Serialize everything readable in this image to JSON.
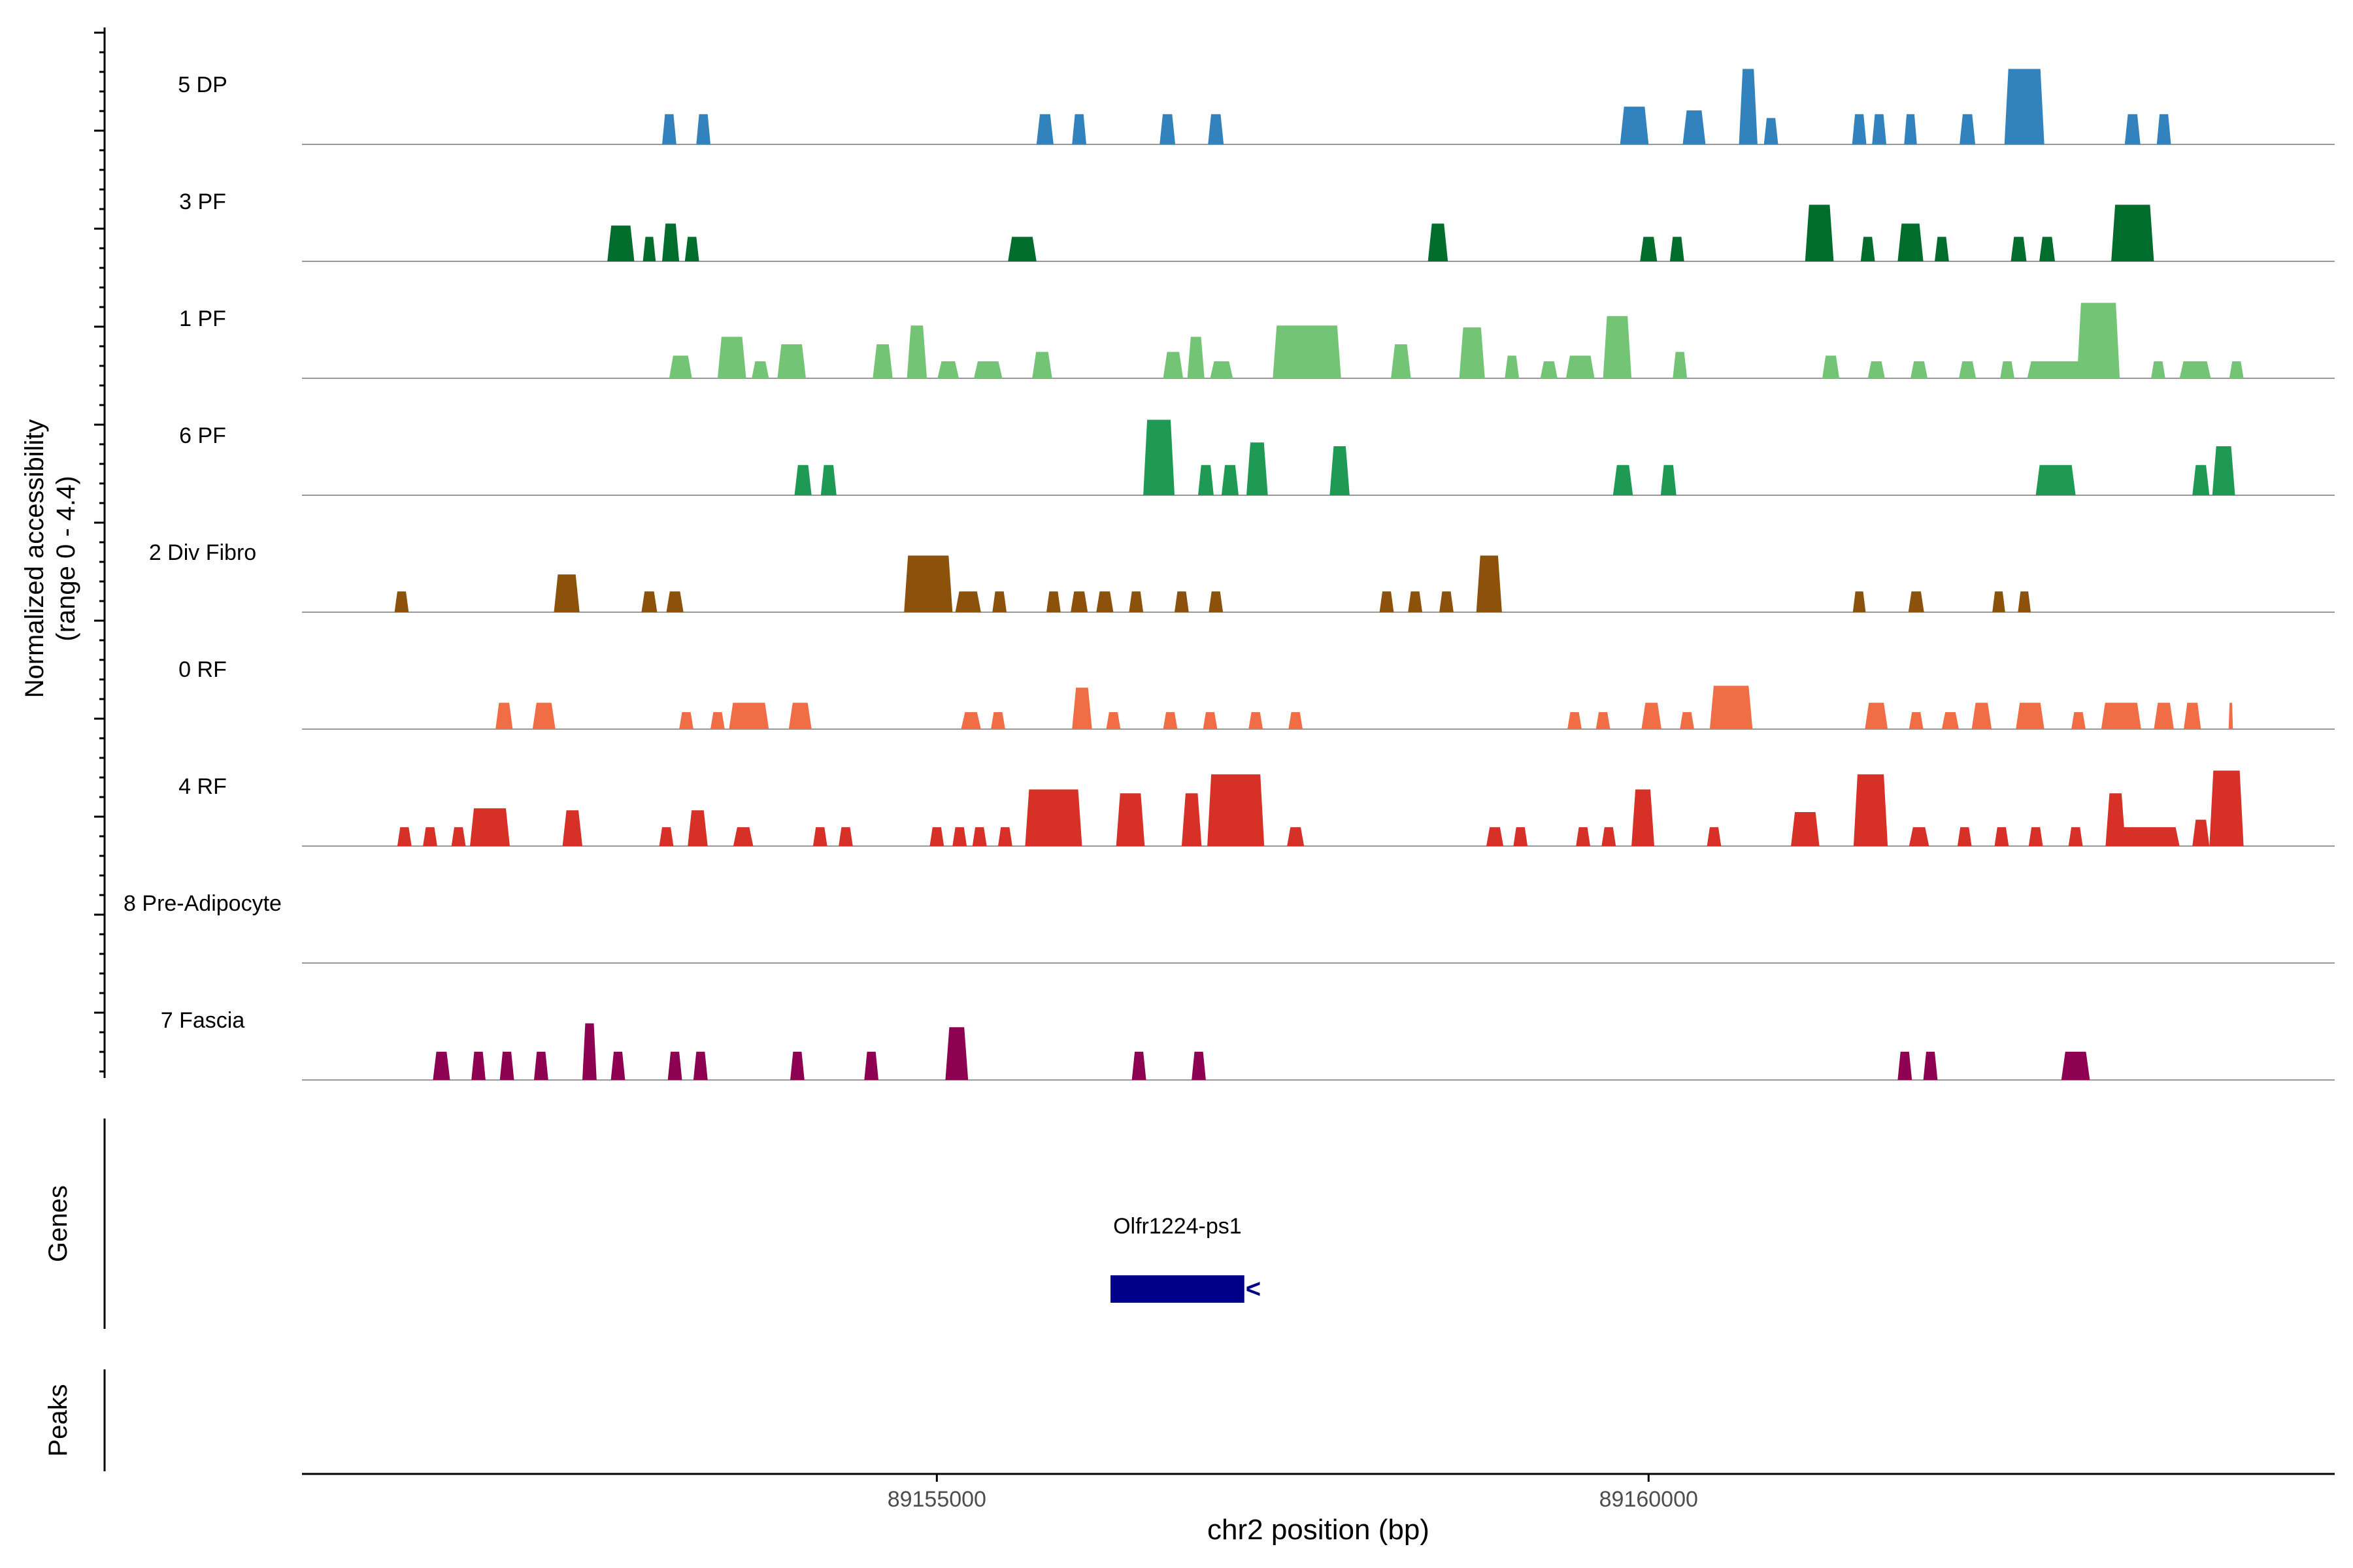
{
  "chart_data": {
    "type": "area",
    "subtype": "genome-coverage-track",
    "ylabel": "Normalized accessibility",
    "ylabel_range": "(range 0 - 4.4)",
    "ylim": [
      0,
      4.4
    ],
    "xlabel": "chr2 position (bp)",
    "xlim": [
      89150540,
      89164820
    ],
    "x_ticks": [
      {
        "value": 89155000,
        "label": "89155000"
      },
      {
        "value": 89160000,
        "label": "89160000"
      }
    ],
    "colors": {
      "track_baseline": "#999999",
      "axis": "#000000",
      "gene": "#00008B",
      "tick_text": "#4d4d4d"
    },
    "series": [
      {
        "name": "5 DP",
        "color": "#3182BD",
        "peaks": [
          [
            89153120,
            100,
            1.6
          ],
          [
            89153360,
            100,
            1.6
          ],
          [
            89155760,
            120,
            1.6
          ],
          [
            89156000,
            100,
            1.6
          ],
          [
            89156620,
            110,
            1.6
          ],
          [
            89156960,
            110,
            1.6
          ],
          [
            89159900,
            200,
            2.0
          ],
          [
            89160320,
            160,
            1.8
          ],
          [
            89160700,
            130,
            4.0
          ],
          [
            89160860,
            100,
            1.4
          ],
          [
            89161480,
            100,
            1.6
          ],
          [
            89161620,
            100,
            1.6
          ],
          [
            89161840,
            90,
            1.6
          ],
          [
            89162240,
            110,
            1.6
          ],
          [
            89162640,
            280,
            4.0
          ],
          [
            89163400,
            110,
            1.6
          ],
          [
            89163620,
            100,
            1.6
          ]
        ]
      },
      {
        "name": "3 PF",
        "color": "#006D2C",
        "peaks": [
          [
            89152780,
            190,
            1.9
          ],
          [
            89152980,
            90,
            1.3
          ],
          [
            89153130,
            120,
            2.0
          ],
          [
            89153280,
            100,
            1.3
          ],
          [
            89155600,
            200,
            1.3
          ],
          [
            89158520,
            140,
            2.0
          ],
          [
            89160000,
            120,
            1.3
          ],
          [
            89160200,
            100,
            1.3
          ],
          [
            89161200,
            200,
            3.0
          ],
          [
            89161540,
            100,
            1.3
          ],
          [
            89161840,
            180,
            2.0
          ],
          [
            89162060,
            100,
            1.3
          ],
          [
            89162600,
            110,
            1.3
          ],
          [
            89162800,
            110,
            1.3
          ],
          [
            89163400,
            300,
            3.0
          ]
        ]
      },
      {
        "name": "1 PF",
        "color": "#74C476",
        "peaks": [
          [
            89153200,
            160,
            1.2
          ],
          [
            89153560,
            200,
            2.2
          ],
          [
            89153760,
            120,
            0.9
          ],
          [
            89153980,
            200,
            1.8
          ],
          [
            89154620,
            140,
            1.8
          ],
          [
            89154860,
            140,
            2.8
          ],
          [
            89155080,
            150,
            0.9
          ],
          [
            89155360,
            200,
            0.9
          ],
          [
            89155740,
            140,
            1.4
          ],
          [
            89156660,
            140,
            1.4
          ],
          [
            89156820,
            120,
            2.2
          ],
          [
            89157000,
            160,
            0.9
          ],
          [
            89157600,
            480,
            2.8
          ],
          [
            89158260,
            140,
            1.8
          ],
          [
            89158760,
            180,
            2.7
          ],
          [
            89159040,
            100,
            1.2
          ],
          [
            89159300,
            120,
            0.9
          ],
          [
            89159520,
            200,
            1.2
          ],
          [
            89159780,
            200,
            3.3
          ],
          [
            89160220,
            100,
            1.4
          ],
          [
            89161280,
            120,
            1.2
          ],
          [
            89161600,
            120,
            0.9
          ],
          [
            89161900,
            120,
            0.9
          ],
          [
            89162240,
            120,
            0.9
          ],
          [
            89162520,
            100,
            0.9
          ],
          [
            89162860,
            400,
            0.9
          ],
          [
            89163160,
            300,
            4.0
          ],
          [
            89163580,
            100,
            0.9
          ],
          [
            89163840,
            220,
            0.9
          ],
          [
            89164130,
            100,
            0.9
          ]
        ]
      },
      {
        "name": "6 PF",
        "color": "#1F9A54",
        "peaks": [
          [
            89154060,
            120,
            1.6
          ],
          [
            89154240,
            110,
            1.6
          ],
          [
            89156560,
            220,
            4.0
          ],
          [
            89156890,
            110,
            1.6
          ],
          [
            89157060,
            120,
            1.6
          ],
          [
            89157250,
            150,
            2.8
          ],
          [
            89157830,
            140,
            2.6
          ],
          [
            89159820,
            140,
            1.6
          ],
          [
            89160140,
            110,
            1.6
          ],
          [
            89162860,
            280,
            1.6
          ],
          [
            89163880,
            120,
            1.6
          ],
          [
            89164040,
            160,
            2.6
          ]
        ]
      },
      {
        "name": "2 Div Fibro",
        "color": "#8C510A",
        "peaks": [
          [
            89151240,
            100,
            1.1
          ],
          [
            89152400,
            180,
            2.0
          ],
          [
            89152980,
            110,
            1.1
          ],
          [
            89153160,
            120,
            1.1
          ],
          [
            89154940,
            340,
            3.0
          ],
          [
            89155220,
            180,
            1.1
          ],
          [
            89155440,
            100,
            1.1
          ],
          [
            89155820,
            100,
            1.1
          ],
          [
            89156000,
            120,
            1.1
          ],
          [
            89156180,
            120,
            1.1
          ],
          [
            89156400,
            100,
            1.1
          ],
          [
            89156720,
            100,
            1.1
          ],
          [
            89156960,
            100,
            1.1
          ],
          [
            89158160,
            100,
            1.1
          ],
          [
            89158360,
            100,
            1.1
          ],
          [
            89158580,
            100,
            1.1
          ],
          [
            89158880,
            180,
            3.0
          ],
          [
            89161480,
            90,
            1.1
          ],
          [
            89161880,
            110,
            1.1
          ],
          [
            89162460,
            90,
            1.1
          ],
          [
            89162640,
            90,
            1.1
          ]
        ]
      },
      {
        "name": "0 RF",
        "color": "#F16D45",
        "peaks": [
          [
            89151960,
            120,
            1.4
          ],
          [
            89152240,
            160,
            1.4
          ],
          [
            89153240,
            100,
            0.9
          ],
          [
            89153460,
            100,
            0.9
          ],
          [
            89153680,
            280,
            1.4
          ],
          [
            89154040,
            160,
            1.4
          ],
          [
            89155240,
            140,
            0.9
          ],
          [
            89155430,
            100,
            0.9
          ],
          [
            89156020,
            140,
            2.2
          ],
          [
            89156240,
            100,
            0.9
          ],
          [
            89156640,
            100,
            0.9
          ],
          [
            89156920,
            100,
            0.9
          ],
          [
            89157240,
            100,
            0.9
          ],
          [
            89157520,
            100,
            0.9
          ],
          [
            89159480,
            100,
            0.9
          ],
          [
            89159680,
            100,
            0.9
          ],
          [
            89160020,
            140,
            1.4
          ],
          [
            89160270,
            100,
            0.9
          ],
          [
            89160580,
            300,
            2.3
          ],
          [
            89161600,
            160,
            1.4
          ],
          [
            89161880,
            100,
            0.9
          ],
          [
            89162120,
            120,
            0.9
          ],
          [
            89162340,
            140,
            1.4
          ],
          [
            89162680,
            200,
            1.4
          ],
          [
            89163020,
            100,
            0.9
          ],
          [
            89163320,
            280,
            1.4
          ],
          [
            89163620,
            140,
            1.4
          ],
          [
            89163820,
            120,
            1.4
          ],
          [
            89164090,
            30,
            1.4
          ]
        ]
      },
      {
        "name": "4 RF",
        "color": "#D73027",
        "peaks": [
          [
            89151260,
            100,
            1.0
          ],
          [
            89151440,
            100,
            1.0
          ],
          [
            89151640,
            100,
            1.0
          ],
          [
            89151860,
            280,
            2.0
          ],
          [
            89152440,
            140,
            1.9
          ],
          [
            89153100,
            100,
            1.0
          ],
          [
            89153320,
            140,
            1.9
          ],
          [
            89153640,
            140,
            1.0
          ],
          [
            89154180,
            100,
            1.0
          ],
          [
            89154360,
            100,
            1.0
          ],
          [
            89155000,
            100,
            1.0
          ],
          [
            89155160,
            100,
            1.0
          ],
          [
            89155300,
            100,
            1.0
          ],
          [
            89155480,
            100,
            1.0
          ],
          [
            89155820,
            400,
            3.0
          ],
          [
            89156360,
            200,
            2.8
          ],
          [
            89156790,
            140,
            2.8
          ],
          [
            89157100,
            400,
            3.8
          ],
          [
            89157520,
            120,
            1.0
          ],
          [
            89158920,
            120,
            1.0
          ],
          [
            89159100,
            100,
            1.0
          ],
          [
            89159540,
            100,
            1.0
          ],
          [
            89159720,
            100,
            1.0
          ],
          [
            89159960,
            160,
            3.0
          ],
          [
            89160460,
            100,
            1.0
          ],
          [
            89161100,
            200,
            1.8
          ],
          [
            89161560,
            240,
            3.8
          ],
          [
            89161900,
            140,
            1.0
          ],
          [
            89162220,
            100,
            1.0
          ],
          [
            89162480,
            100,
            1.0
          ],
          [
            89162720,
            100,
            1.0
          ],
          [
            89163000,
            100,
            1.0
          ],
          [
            89163280,
            140,
            2.8
          ],
          [
            89163480,
            500,
            1.0
          ],
          [
            89163880,
            120,
            1.4
          ],
          [
            89164060,
            240,
            4.0
          ]
        ]
      },
      {
        "name": "8 Pre-Adipocyte",
        "color": "#E6AB02",
        "peaks": []
      },
      {
        "name": "7 Fascia",
        "color": "#8E0152",
        "peaks": [
          [
            89151520,
            120,
            1.5
          ],
          [
            89151780,
            100,
            1.5
          ],
          [
            89151980,
            100,
            1.5
          ],
          [
            89152220,
            100,
            1.5
          ],
          [
            89152560,
            100,
            3.0
          ],
          [
            89152760,
            100,
            1.5
          ],
          [
            89153160,
            100,
            1.5
          ],
          [
            89153340,
            100,
            1.5
          ],
          [
            89154020,
            100,
            1.5
          ],
          [
            89154540,
            100,
            1.5
          ],
          [
            89155140,
            160,
            2.8
          ],
          [
            89156420,
            100,
            1.5
          ],
          [
            89156840,
            100,
            1.5
          ],
          [
            89161800,
            100,
            1.5
          ],
          [
            89161980,
            100,
            1.5
          ],
          [
            89163000,
            200,
            1.5
          ]
        ]
      }
    ],
    "genes": [
      {
        "name": "Olfr1224-ps1",
        "start": 89156220,
        "end": 89157160,
        "strand": "-"
      }
    ],
    "peaks_track": []
  },
  "labels": {
    "genes_track": "Genes",
    "peaks_track": "Peaks",
    "strand_glyph": "<"
  }
}
